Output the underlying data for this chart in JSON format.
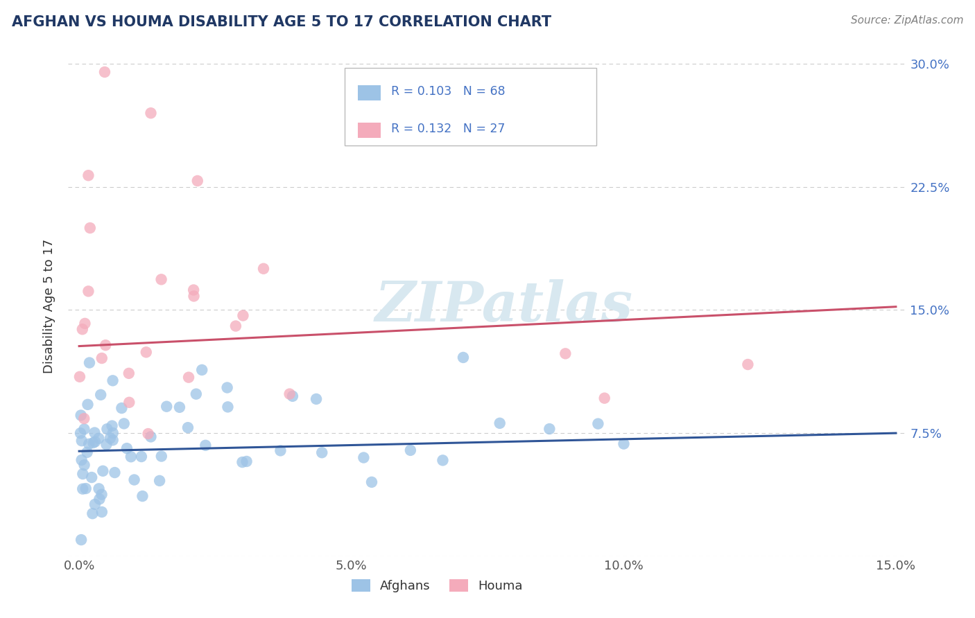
{
  "title": "AFGHAN VS HOUMA DISABILITY AGE 5 TO 17 CORRELATION CHART",
  "source": "Source: ZipAtlas.com",
  "ylabel": "Disability Age 5 to 17",
  "xlim": [
    -0.002,
    0.152
  ],
  "ylim": [
    0.0,
    0.305
  ],
  "xticks": [
    0.0,
    0.05,
    0.1,
    0.15
  ],
  "xtick_labels": [
    "0.0%",
    "5.0%",
    "10.0%",
    "15.0%"
  ],
  "yticks": [
    0.0,
    0.075,
    0.15,
    0.225,
    0.3
  ],
  "right_ytick_labels": [
    "",
    "7.5%",
    "15.0%",
    "22.5%",
    "30.0%"
  ],
  "afghan_R": 0.103,
  "afghan_N": 68,
  "houma_R": 0.132,
  "houma_N": 27,
  "afghan_color": "#9DC3E6",
  "houma_color": "#F4ABBB",
  "afghan_line_color": "#2F5597",
  "houma_line_color": "#C9506A",
  "title_color": "#203864",
  "source_color": "#808080",
  "watermark_color": "#D8E8F0",
  "background_color": "#FFFFFF",
  "grid_color": "#CCCCCC",
  "right_tick_color": "#4472C4",
  "legend_label_afghan": "Afghans",
  "legend_label_houma": "Houma",
  "afghan_line_y0": 0.064,
  "afghan_line_y1": 0.075,
  "houma_line_y0": 0.128,
  "houma_line_y1": 0.152
}
